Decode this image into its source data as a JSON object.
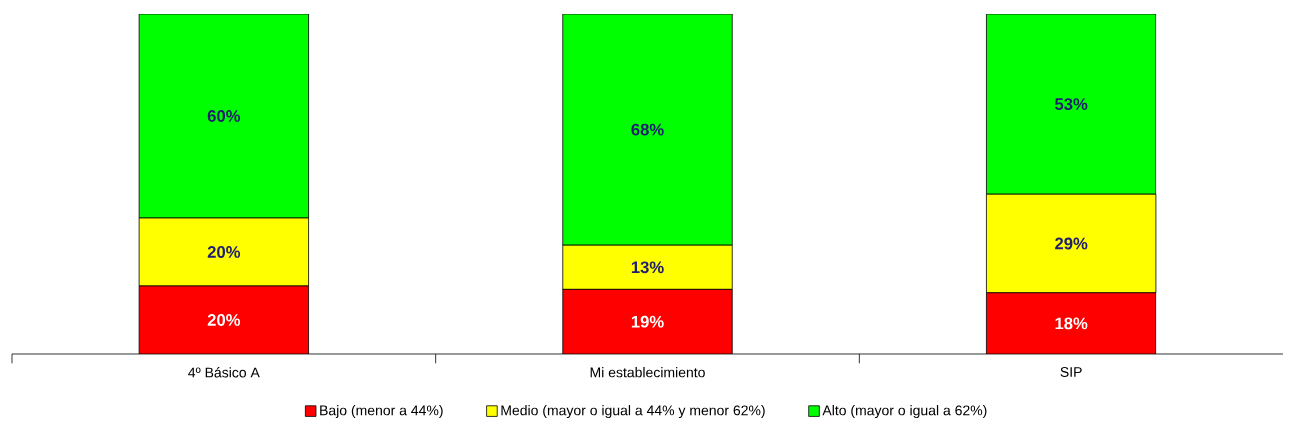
{
  "chart_data": {
    "type": "bar",
    "stacked": true,
    "categories": [
      "4º Básico  A",
      "Mi establecimiento",
      "SIP"
    ],
    "series": [
      {
        "name": "Bajo (menor a 44%)",
        "color": "#ff0000",
        "values": [
          20,
          19,
          18
        ],
        "value_labels": [
          "20%",
          "19%",
          "18%"
        ]
      },
      {
        "name": "Medio (mayor o igual a 44% y menor 62%)",
        "color": "#ffff00",
        "values": [
          20,
          13,
          29
        ],
        "value_labels": [
          "20%",
          "13%",
          "29%"
        ]
      },
      {
        "name": "Alto (mayor o igual a 62%)",
        "color": "#00ff00",
        "values": [
          60,
          68,
          53
        ],
        "value_labels": [
          "60%",
          "68%",
          "53%"
        ]
      }
    ],
    "ylim": [
      0,
      100
    ],
    "tick_labels": "x",
    "legend": "bottom"
  }
}
